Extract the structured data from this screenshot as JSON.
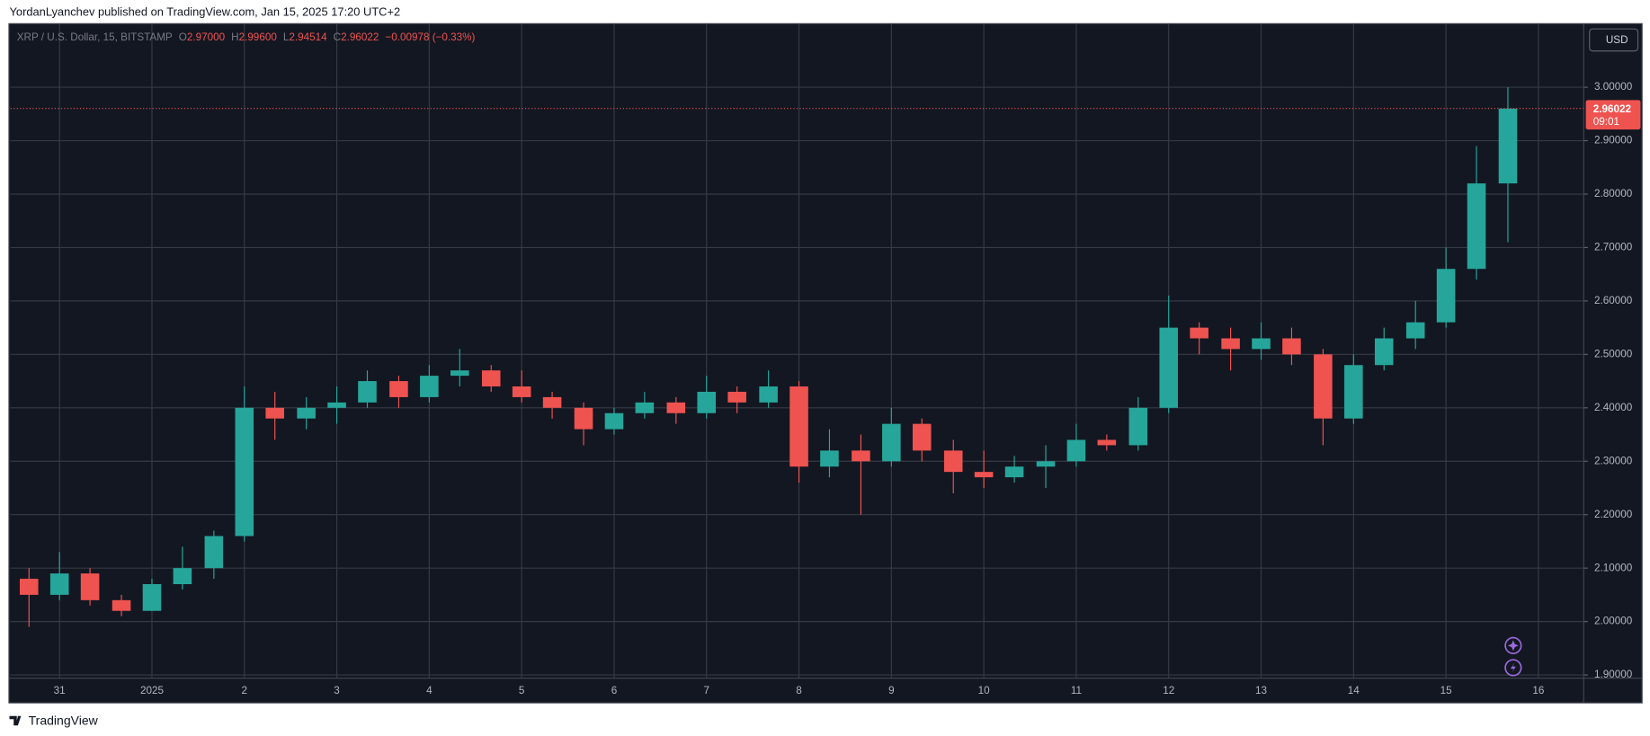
{
  "header": "YordanLyanchev published on TradingView.com, Jan 15, 2025 17:20 UTC+2",
  "footer": "TradingView",
  "currency_button": "USD",
  "ohlc_legend": {
    "symbol": "XRP / U.S. Dollar, 15, BITSTAMP",
    "items": [
      {
        "key": "O",
        "value": "2.97000"
      },
      {
        "key": "H",
        "value": "2.99600"
      },
      {
        "key": "L",
        "value": "2.94514"
      },
      {
        "key": "C",
        "value": "2.96022"
      }
    ],
    "change": "−0.00978 (−0.33%)"
  },
  "chart_data": {
    "type": "candlestick",
    "up_color": "#26a69a",
    "down_color": "#ef5350",
    "grid": true,
    "x": [
      -0.33,
      0,
      0.33,
      0.67,
      1,
      1.33,
      1.67,
      2,
      2.33,
      2.67,
      3,
      3.33,
      3.67,
      4,
      4.33,
      4.67,
      5,
      5.33,
      5.67,
      6,
      6.33,
      6.67,
      7,
      7.33,
      7.67,
      8,
      8.33,
      8.67,
      9,
      9.33,
      9.67,
      10,
      10.33,
      10.67,
      11,
      11.33,
      11.67,
      12,
      12.33,
      12.67,
      13,
      13.33,
      13.67,
      14,
      14.33,
      14.67,
      15,
      15.33,
      15.67
    ],
    "open": [
      2.08,
      2.05,
      2.09,
      2.04,
      2.02,
      2.07,
      2.1,
      2.16,
      2.4,
      2.38,
      2.4,
      2.41,
      2.45,
      2.42,
      2.46,
      2.47,
      2.44,
      2.42,
      2.4,
      2.36,
      2.39,
      2.41,
      2.39,
      2.43,
      2.41,
      2.44,
      2.29,
      2.32,
      2.3,
      2.37,
      2.32,
      2.28,
      2.27,
      2.29,
      2.3,
      2.34,
      2.33,
      2.4,
      2.55,
      2.53,
      2.51,
      2.53,
      2.5,
      2.38,
      2.48,
      2.53,
      2.56,
      2.66,
      2.82
    ],
    "high": [
      2.1,
      2.13,
      2.1,
      2.05,
      2.08,
      2.14,
      2.17,
      2.44,
      2.43,
      2.42,
      2.44,
      2.47,
      2.46,
      2.48,
      2.51,
      2.48,
      2.47,
      2.43,
      2.41,
      2.4,
      2.43,
      2.42,
      2.46,
      2.44,
      2.47,
      2.45,
      2.36,
      2.35,
      2.4,
      2.38,
      2.34,
      2.32,
      2.31,
      2.33,
      2.37,
      2.35,
      2.42,
      2.61,
      2.56,
      2.55,
      2.56,
      2.55,
      2.51,
      2.5,
      2.55,
      2.6,
      2.7,
      2.89,
      3.0
    ],
    "low": [
      1.99,
      2.04,
      2.03,
      2.01,
      2.02,
      2.06,
      2.08,
      2.15,
      2.34,
      2.36,
      2.37,
      2.4,
      2.4,
      2.41,
      2.44,
      2.43,
      2.41,
      2.38,
      2.33,
      2.35,
      2.38,
      2.37,
      2.38,
      2.39,
      2.4,
      2.26,
      2.27,
      2.2,
      2.29,
      2.3,
      2.24,
      2.25,
      2.26,
      2.25,
      2.29,
      2.32,
      2.32,
      2.39,
      2.5,
      2.47,
      2.49,
      2.48,
      2.33,
      2.37,
      2.47,
      2.51,
      2.55,
      2.64,
      2.71
    ],
    "close": [
      2.05,
      2.09,
      2.04,
      2.02,
      2.07,
      2.1,
      2.16,
      2.4,
      2.38,
      2.4,
      2.41,
      2.45,
      2.42,
      2.46,
      2.47,
      2.44,
      2.42,
      2.4,
      2.36,
      2.39,
      2.41,
      2.39,
      2.43,
      2.41,
      2.44,
      2.29,
      2.32,
      2.3,
      2.37,
      2.32,
      2.28,
      2.27,
      2.29,
      2.3,
      2.34,
      2.33,
      2.4,
      2.55,
      2.53,
      2.51,
      2.53,
      2.5,
      2.38,
      2.48,
      2.53,
      2.56,
      2.66,
      2.82,
      2.96
    ],
    "xlim": [
      -0.53,
      16.49
    ],
    "ylim": [
      1.894,
      3.118
    ],
    "xticks": [
      {
        "value": 0,
        "label": "31"
      },
      {
        "value": 1,
        "label": "2025"
      },
      2,
      3,
      4,
      5,
      6,
      7,
      8,
      9,
      10,
      11,
      12,
      13,
      14,
      15,
      16
    ],
    "yticks": [
      {
        "value": 1.9,
        "label": "1.90000"
      },
      {
        "value": 2,
        "label": "2.00000"
      },
      {
        "value": 2.1,
        "label": "2.10000"
      },
      {
        "value": 2.2,
        "label": "2.20000"
      },
      {
        "value": 2.3,
        "label": "2.30000"
      },
      {
        "value": 2.4,
        "label": "2.40000"
      },
      {
        "value": 2.5,
        "label": "2.50000"
      },
      {
        "value": 2.6,
        "label": "2.60000"
      },
      {
        "value": 2.7,
        "label": "2.70000"
      },
      {
        "value": 2.8,
        "label": "2.80000"
      },
      {
        "value": 2.9,
        "label": "2.90000"
      },
      {
        "value": 3,
        "label": "3.00000"
      }
    ],
    "last_price": {
      "value": 2.96022,
      "label": "2.96022"
    },
    "countdown": "09:01"
  }
}
